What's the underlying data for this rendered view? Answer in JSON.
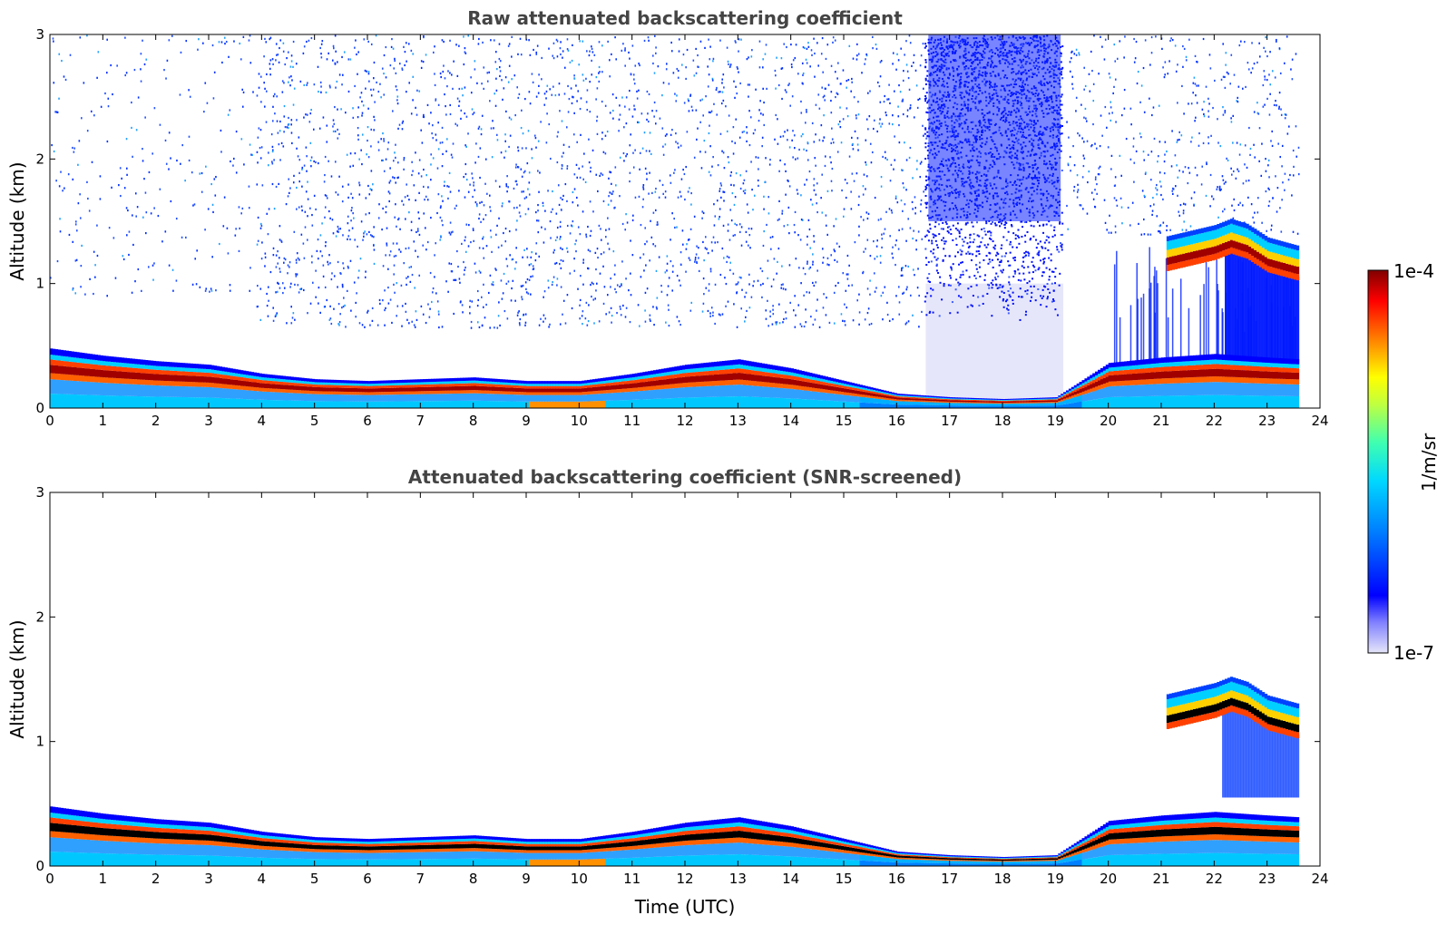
{
  "chart_data": [
    {
      "type": "heatmap",
      "title": "Raw attenuated backscattering coefficient",
      "xlabel": "",
      "ylabel": "Altitude (km)",
      "xlim": [
        0,
        24
      ],
      "ylim": [
        0,
        3
      ],
      "x_ticks": [
        "0",
        "1",
        "2",
        "3",
        "4",
        "5",
        "6",
        "7",
        "8",
        "9",
        "10",
        "11",
        "12",
        "13",
        "14",
        "15",
        "16",
        "17",
        "18",
        "19",
        "20",
        "21",
        "22",
        "23",
        "24"
      ],
      "y_ticks": [
        "0",
        "1",
        "2",
        "3"
      ],
      "data_end_hour": 23.6,
      "layer_height_km": [
        [
          0,
          0.33
        ],
        [
          1,
          0.29
        ],
        [
          2,
          0.26
        ],
        [
          3,
          0.24
        ],
        [
          4,
          0.19
        ],
        [
          5,
          0.16
        ],
        [
          6,
          0.15
        ],
        [
          7,
          0.16
        ],
        [
          8,
          0.17
        ],
        [
          9,
          0.15
        ],
        [
          10,
          0.15
        ],
        [
          11,
          0.19
        ],
        [
          12,
          0.24
        ],
        [
          13,
          0.27
        ],
        [
          14,
          0.22
        ],
        [
          15,
          0.15
        ],
        [
          16,
          0.08
        ],
        [
          17,
          0.06
        ],
        [
          18,
          0.05
        ],
        [
          19,
          0.06
        ],
        [
          20,
          0.25
        ],
        [
          21,
          0.28
        ],
        [
          22,
          0.3
        ],
        [
          23,
          0.28
        ],
        [
          23.6,
          0.27
        ]
      ],
      "elevated_layer_km": [
        [
          21.1,
          1.18
        ],
        [
          21.5,
          1.22
        ],
        [
          22.0,
          1.27
        ],
        [
          22.3,
          1.32
        ],
        [
          22.6,
          1.28
        ],
        [
          23.0,
          1.17
        ],
        [
          23.6,
          1.1
        ]
      ],
      "noisy_background_hours": [
        [
          3.9,
          16.5
        ],
        [
          16.5,
          19.2
        ],
        [
          19.2,
          23.6
        ]
      ],
      "colorscale": {
        "min_label": "1e-7",
        "max_label": "1e-4",
        "label": "1/m/sr",
        "log": true
      }
    },
    {
      "type": "heatmap",
      "title": "Attenuated backscattering coefficient (SNR-screened)",
      "xlabel": "Time (UTC)",
      "ylabel": "Altitude (km)",
      "xlim": [
        0,
        24
      ],
      "ylim": [
        0,
        3
      ],
      "x_ticks": [
        "0",
        "1",
        "2",
        "3",
        "4",
        "5",
        "6",
        "7",
        "8",
        "9",
        "10",
        "11",
        "12",
        "13",
        "14",
        "15",
        "16",
        "17",
        "18",
        "19",
        "20",
        "21",
        "22",
        "23",
        "24"
      ],
      "y_ticks": [
        "0",
        "1",
        "2",
        "3"
      ],
      "data_end_hour": 23.6,
      "layer_height_km": [
        [
          0,
          0.33
        ],
        [
          1,
          0.29
        ],
        [
          2,
          0.26
        ],
        [
          3,
          0.24
        ],
        [
          4,
          0.19
        ],
        [
          5,
          0.16
        ],
        [
          6,
          0.15
        ],
        [
          7,
          0.16
        ],
        [
          8,
          0.17
        ],
        [
          9,
          0.15
        ],
        [
          10,
          0.15
        ],
        [
          11,
          0.19
        ],
        [
          12,
          0.24
        ],
        [
          13,
          0.27
        ],
        [
          14,
          0.22
        ],
        [
          15,
          0.15
        ],
        [
          16,
          0.08
        ],
        [
          17,
          0.06
        ],
        [
          18,
          0.05
        ],
        [
          19,
          0.06
        ],
        [
          20,
          0.25
        ],
        [
          21,
          0.28
        ],
        [
          22,
          0.3
        ],
        [
          23,
          0.28
        ],
        [
          23.6,
          0.27
        ]
      ],
      "elevated_layer_km": [
        [
          21.1,
          1.18
        ],
        [
          21.5,
          1.22
        ],
        [
          22.0,
          1.27
        ],
        [
          22.3,
          1.32
        ],
        [
          22.6,
          1.28
        ],
        [
          23.0,
          1.17
        ],
        [
          23.6,
          1.1
        ]
      ],
      "colorscale": {
        "min_label": "1e-7",
        "max_label": "1e-4",
        "label": "1/m/sr",
        "log": true
      }
    }
  ],
  "colorbar": {
    "top_label": "1e-4",
    "bottom_label": "1e-7",
    "unit_label": "1/m/sr"
  },
  "colors": {
    "jet": [
      "#e6e6fa",
      "#0000ff",
      "#0080ff",
      "#00d0ff",
      "#40ffc0",
      "#a0ff60",
      "#ffff00",
      "#ff8000",
      "#ff0000",
      "#800000"
    ],
    "screened_core": "#000000"
  }
}
